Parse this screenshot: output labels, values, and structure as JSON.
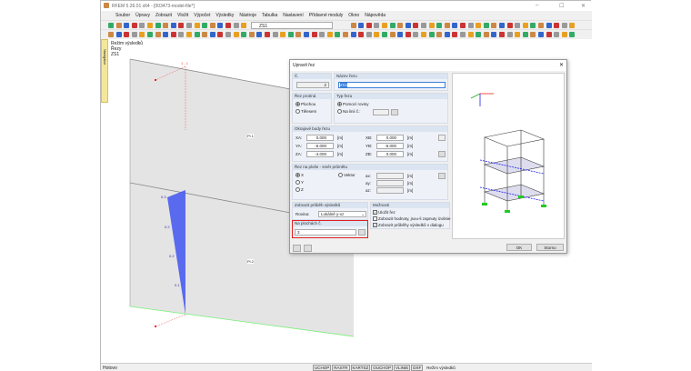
{
  "window": {
    "title": "RFEM 5.26.01 x64 - [003473-model-file*]",
    "minimize": "–",
    "maximize": "☐",
    "close": "✕"
  },
  "menu": [
    "Soubor",
    "Úpravy",
    "Zobrazit",
    "Vložit",
    "Výpočet",
    "Výsledky",
    "Nástroje",
    "Tabulka",
    "Nastavení",
    "Přídavné moduly",
    "Okno",
    "Nápověda"
  ],
  "toolbar": {
    "load_case": "ZS1"
  },
  "left_tab": "Navigátor",
  "viewport": {
    "info": [
      "Režim výsledků",
      "Řezy",
      "ZS1"
    ],
    "section_label": "1 - 1",
    "surface_labels": [
      "Pl.1",
      "Pl.2"
    ],
    "values": [
      "0.3",
      "0.2",
      "0.2",
      "0.1"
    ],
    "accent": "#4a5cf0"
  },
  "dialog": {
    "title": "Upravit řez",
    "close": "✕",
    "no_label": "Č.",
    "no_value": "2",
    "name_label": "Název řezu",
    "name_value": "ZS1",
    "cut_through": {
      "label": "Řez protíná",
      "options": [
        "Plochou",
        "Tělesem"
      ],
      "selected": "Plochou"
    },
    "section_type": {
      "label": "Typ řezu",
      "options": [
        "Pomocí roviny",
        "Na linii č.:"
      ],
      "selected": "Pomocí roviny"
    },
    "boundary": {
      "label": "Okrajové body řezu",
      "unit": "[m]",
      "left": [
        {
          "label": "XA:",
          "value": "0.000"
        },
        {
          "label": "YA:",
          "value": "-6.000"
        },
        {
          "label": "ZA:",
          "value": "-4.000"
        }
      ],
      "right": [
        {
          "label": "XB:",
          "value": "0.000"
        },
        {
          "label": "YB:",
          "value": "-6.000"
        },
        {
          "label": "ZB:",
          "value": "0.000"
        }
      ]
    },
    "direction": {
      "label": "Řez na ploše - směr průmětu",
      "options": [
        "X",
        "Y",
        "Z"
      ],
      "selected": "X",
      "vector": "Vektor",
      "vec_labels": [
        "ax:",
        "ay:",
        "az:"
      ],
      "unit": "[m]"
    },
    "display": {
      "label": "Zobrazit průběh výsledků",
      "plane_label": "Rovina:",
      "plane_value": "Lokálně y-xz"
    },
    "surfaces": {
      "label": "Na plochách č.",
      "value": "3"
    },
    "options": {
      "label": "Možnosti",
      "items": [
        {
          "label": "Uložit řez",
          "checked": true
        },
        {
          "label": "Zobrazit hodnoty, jsou-li zapnuty izolinie",
          "checked": false
        },
        {
          "label": "Zobrazit průběhy výsledků v dialogu",
          "checked": true
        }
      ]
    },
    "ok": "OK",
    "cancel": "Storno",
    "highlight": "#e02020"
  },
  "status": {
    "left": "Hotovo",
    "toggles": [
      "UCHOP",
      "RASTR",
      "KARTSZ",
      "OUCHOP",
      "VLINIE",
      "DXF"
    ],
    "mode": "Režim výsledků"
  }
}
